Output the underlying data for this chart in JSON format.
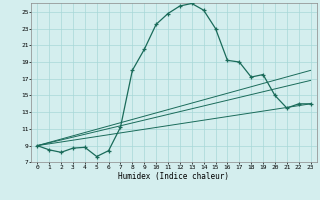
{
  "xlabel": "Humidex (Indice chaleur)",
  "bg_color": "#d4eeee",
  "line_color": "#1a6b5a",
  "grid_color": "#a8d8d8",
  "xlim": [
    -0.5,
    23.5
  ],
  "ylim": [
    7,
    26
  ],
  "xticks": [
    0,
    1,
    2,
    3,
    4,
    5,
    6,
    7,
    8,
    9,
    10,
    11,
    12,
    13,
    14,
    15,
    16,
    17,
    18,
    19,
    20,
    21,
    22,
    23
  ],
  "yticks": [
    7,
    9,
    11,
    13,
    15,
    17,
    19,
    21,
    23,
    25
  ],
  "curve1_x": [
    0,
    1,
    2,
    3,
    4,
    5,
    6,
    7,
    8,
    9,
    10,
    11,
    12,
    13,
    14,
    15,
    16,
    17,
    18,
    19,
    20,
    21,
    22,
    23
  ],
  "curve1_y": [
    9.0,
    8.5,
    8.2,
    8.7,
    8.8,
    7.7,
    8.4,
    11.2,
    18.0,
    20.5,
    23.5,
    24.8,
    25.7,
    26.0,
    25.2,
    23.0,
    19.2,
    19.0,
    17.2,
    17.5,
    15.0,
    13.5,
    14.0,
    14.0
  ],
  "line2_x": [
    0,
    23
  ],
  "line2_y": [
    9.0,
    14.0
  ],
  "line3_x": [
    0,
    23
  ],
  "line3_y": [
    9.0,
    16.8
  ],
  "line4_x": [
    0,
    23
  ],
  "line4_y": [
    9.0,
    18.0
  ]
}
